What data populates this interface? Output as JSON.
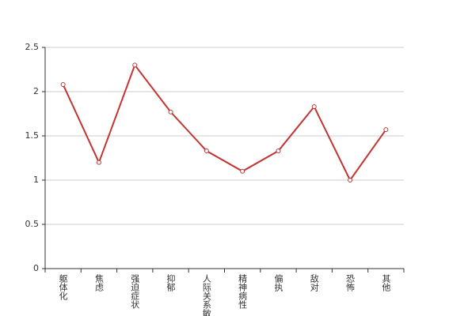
{
  "chart_data": {
    "type": "line",
    "categories": [
      "躯体化",
      "焦虑",
      "强迫症状",
      "抑郁",
      "人际关系敏感",
      "精神病性",
      "偏执",
      "敌对",
      "恐怖",
      "其他"
    ],
    "series": [
      {
        "color": "#c23531",
        "values": [
          2.08,
          1.2,
          2.3,
          1.77,
          1.33,
          1.1,
          1.33,
          1.83,
          1.0,
          1.57
        ]
      }
    ],
    "ylim": [
      0,
      2.5
    ],
    "yticks": [
      0,
      0.5,
      1,
      1.5,
      2,
      2.5
    ],
    "grid": true
  }
}
